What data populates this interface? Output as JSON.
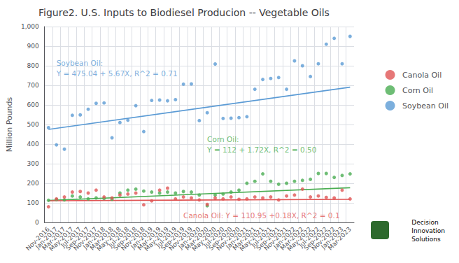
{
  "chart_data": {
    "type": "scatter",
    "title": "Figure2. U.S. Inputs to Biodiesel Producion -- Vegetable Oils",
    "ylabel": "Million Pounds",
    "categories": [
      "Nov-2016",
      "Jan-2017",
      "Mar-2017",
      "May-2017",
      "Jul-2017",
      "Sep-2017",
      "Nov-2017",
      "Jan-2018",
      "Mar-2018",
      "May-2018",
      "Jul-2018",
      "Sep-2018",
      "Nov-2018",
      "Jan-2019",
      "Mar-2019",
      "May-2019",
      "Jul-2019",
      "Sep-2019",
      "Nov-2019",
      "Jan-2020",
      "Mar-2020",
      "May-2020",
      "Jul-2020",
      "Sep-2020",
      "Nov-2020",
      "Jan-2021",
      "Mar-2021",
      "May-2021",
      "Jul-2021",
      "Sep-2021",
      "Nov-2021",
      "Jan-2022",
      "Mar-2022",
      "May-2022",
      "Jul-2022",
      "Sep-2022",
      "Nov-2022",
      "Jan-2023",
      "Mar-2023"
    ],
    "series": [
      {
        "name": "Soybean Oil",
        "color": "#5b9bd5",
        "values": [
          484,
          396,
          374,
          547,
          549,
          578,
          608,
          610,
          432,
          510,
          522,
          596,
          464,
          623,
          625,
          621,
          627,
          706,
          707,
          520,
          560,
          809,
          531,
          532,
          535,
          540,
          680,
          730,
          735,
          740,
          680,
          825,
          800,
          745,
          810,
          910,
          940,
          810,
          950
        ],
        "trend": {
          "x": [
            "Nov-2016",
            "Mar-2023"
          ],
          "values": [
            475.04,
            690.5
          ]
        }
      },
      {
        "name": "Corn Oil",
        "color": "#4aad52",
        "values": [
          113,
          117,
          115,
          135,
          130,
          120,
          125,
          122,
          118,
          150,
          165,
          170,
          160,
          155,
          150,
          155,
          150,
          158,
          155,
          140,
          85,
          140,
          145,
          155,
          165,
          200,
          210,
          248,
          210,
          195,
          200,
          210,
          215,
          220,
          250,
          250,
          230,
          240,
          248
        ],
        "trend": {
          "x": [
            "Nov-2016",
            "Mar-2023"
          ],
          "values": [
            112.0,
            177.36
          ]
        }
      },
      {
        "name": "Canola Oil",
        "color": "#e05555",
        "values": [
          80,
          120,
          130,
          155,
          158,
          150,
          165,
          130,
          125,
          140,
          145,
          150,
          90,
          110,
          165,
          175,
          120,
          130,
          125,
          115,
          92,
          125,
          120,
          130,
          118,
          120,
          130,
          125,
          130,
          115,
          135,
          140,
          170,
          130,
          135,
          128,
          125,
          165,
          120
        ],
        "trend": {
          "x": [
            "Nov-2016",
            "Mar-2023"
          ],
          "values": [
            110.95,
            117.79
          ]
        }
      }
    ],
    "annotations": [
      {
        "text": "Soybean Oil:\nY = 475.04 + 5.67X, R^2 = 0.71",
        "x": "Jan-2017",
        "y": 840,
        "color": "#5b9bd5"
      },
      {
        "text": "Corn Oil:\nY = 112 + 1.72X, R^2 = 0.50",
        "x": "Mar-2020",
        "y": 450,
        "color": "#4aad52"
      },
      {
        "text": "Canola Oil: Y = 110.95 +0.18X, R^2 = 0.1",
        "x": "Sep-2019",
        "y": 62,
        "color": "#e05555"
      }
    ],
    "logo": [
      "Decision",
      "Innovation",
      "Solutions"
    ],
    "ylim": [
      0,
      1000
    ],
    "yticks": [
      0,
      100,
      200,
      300,
      400,
      500,
      600,
      700,
      800,
      900,
      1000
    ],
    "grid": true,
    "legend": "right"
  }
}
